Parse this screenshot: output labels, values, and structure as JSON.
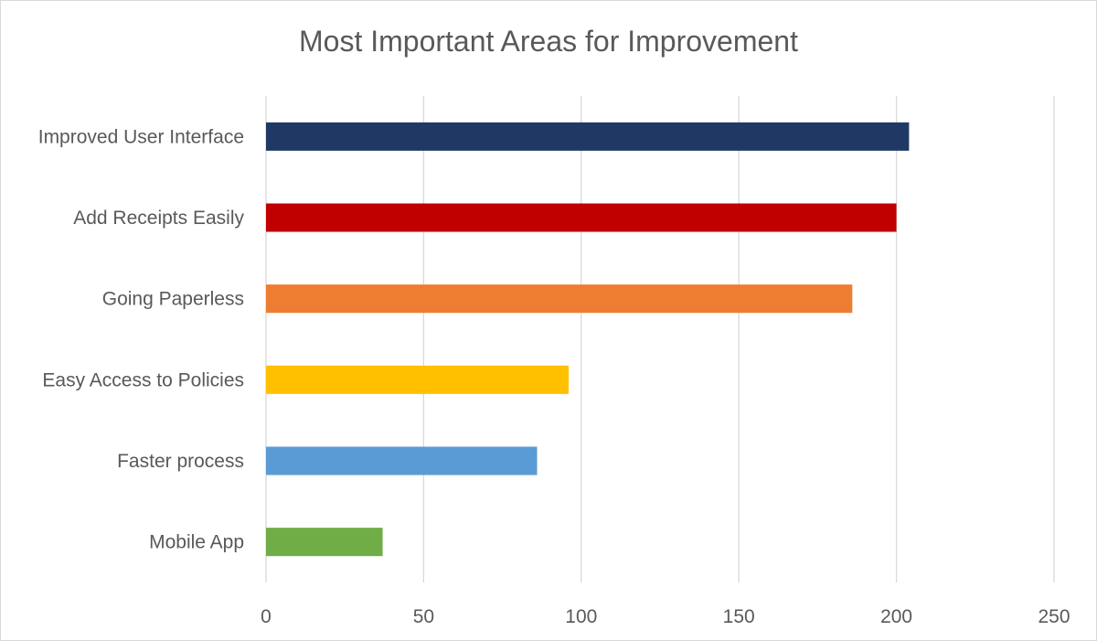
{
  "chart_data": {
    "type": "bar",
    "orientation": "horizontal",
    "title": "Most Important Areas for Improvement",
    "categories": [
      "Improved User Interface",
      "Add Receipts Easily",
      "Going Paperless",
      "Easy Access to Policies",
      "Faster process",
      "Mobile App"
    ],
    "values": [
      204,
      200,
      186,
      96,
      86,
      37
    ],
    "colors": [
      "#1f3864",
      "#c00000",
      "#ed7d31",
      "#ffc000",
      "#5b9bd5",
      "#70ad47"
    ],
    "xlim": [
      0,
      250
    ],
    "xticks": [
      0,
      50,
      100,
      150,
      200,
      250
    ],
    "xtick_labels": [
      "0",
      "50",
      "100",
      "150",
      "200",
      "250"
    ],
    "grid": "vertical",
    "legend": "none",
    "gridline_color": "#d9d9d9"
  }
}
